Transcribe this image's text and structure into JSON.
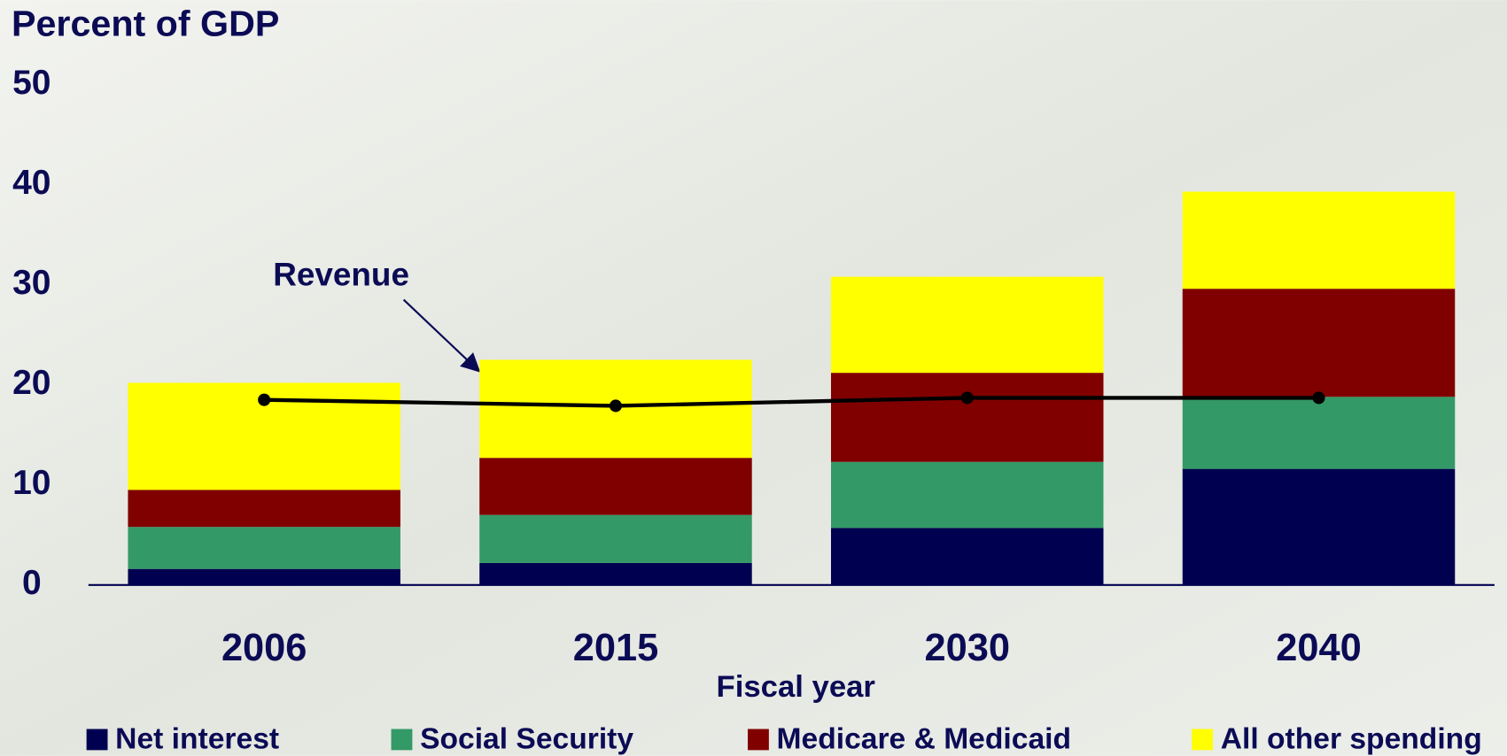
{
  "chart_data": {
    "type": "bar",
    "stacked": true,
    "y_label": "Percent of GDP",
    "x_label": "Fiscal year",
    "categories": [
      "2006",
      "2015",
      "2030",
      "2040"
    ],
    "series": [
      {
        "name": "Net interest",
        "color": "#000050",
        "values": [
          1.6,
          2.2,
          5.7,
          11.6
        ]
      },
      {
        "name": "Social Security",
        "color": "#339966",
        "values": [
          4.2,
          4.8,
          6.6,
          7.2
        ]
      },
      {
        "name": "Medicare & Medicaid",
        "color": "#800000",
        "values": [
          3.7,
          5.7,
          8.9,
          10.8
        ]
      },
      {
        "name": "All other spending",
        "color": "#ffff00",
        "values": [
          10.7,
          9.8,
          9.6,
          9.7
        ]
      },
      {
        "name": "Revenue",
        "type": "line",
        "color": "#000000",
        "values": [
          18.5,
          17.9,
          18.7,
          18.7
        ]
      }
    ],
    "ylim": [
      0,
      50
    ],
    "yticks": [
      0,
      10,
      20,
      30,
      40,
      50
    ],
    "grid": false
  }
}
